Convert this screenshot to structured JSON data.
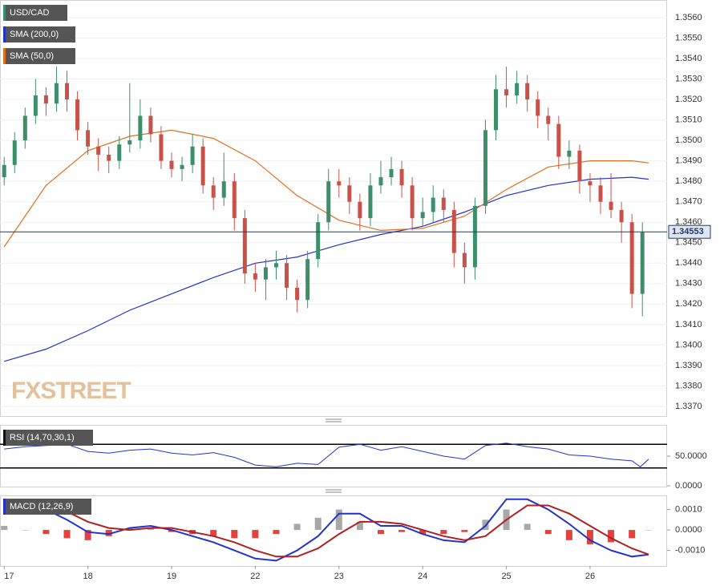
{
  "chart_data": [
    {
      "type": "candlestick",
      "title": "USD/CAD",
      "watermark": "FXSTREET",
      "up_color": "#3d8f6b",
      "down_color": "#c8524a",
      "xlim": [
        -0.05,
        7.92
      ],
      "xticks": [
        {
          "value": 0,
          "label": "17"
        },
        {
          "value": 1,
          "label": "18"
        },
        {
          "value": 2,
          "label": "19"
        },
        {
          "value": 3,
          "label": "22"
        },
        {
          "value": 4,
          "label": "23"
        },
        {
          "value": 5,
          "label": "24"
        },
        {
          "value": 6,
          "label": "25"
        },
        {
          "value": 7,
          "label": "26"
        }
      ],
      "ylim": [
        1.33649,
        1.35686
      ],
      "yticks": [
        {
          "value": 1.337,
          "label": "1.3370"
        },
        {
          "value": 1.338,
          "label": "1.3380"
        },
        {
          "value": 1.339,
          "label": "1.3390"
        },
        {
          "value": 1.34,
          "label": "1.3400"
        },
        {
          "value": 1.341,
          "label": "1.3410"
        },
        {
          "value": 1.342,
          "label": "1.3420"
        },
        {
          "value": 1.343,
          "label": "1.3430"
        },
        {
          "value": 1.344,
          "label": "1.3440"
        },
        {
          "value": 1.345,
          "label": "1.3450"
        },
        {
          "value": 1.346,
          "label": "1.3460"
        },
        {
          "value": 1.347,
          "label": "1.3470"
        },
        {
          "value": 1.348,
          "label": "1.3480"
        },
        {
          "value": 1.349,
          "label": "1.3490"
        },
        {
          "value": 1.35,
          "label": "1.3500"
        },
        {
          "value": 1.351,
          "label": "1.3510"
        },
        {
          "value": 1.352,
          "label": "1.3520"
        },
        {
          "value": 1.353,
          "label": "1.3530"
        },
        {
          "value": 1.354,
          "label": "1.3540"
        },
        {
          "value": 1.355,
          "label": "1.3550"
        },
        {
          "value": 1.356,
          "label": "1.3560"
        }
      ],
      "grid": true,
      "last_price": {
        "value": 1.34553,
        "label": "1.34553"
      },
      "x": [
        0,
        0.125,
        0.25,
        0.375,
        0.5,
        0.625,
        0.75,
        0.875,
        1,
        1.125,
        1.25,
        1.375,
        1.5,
        1.625,
        1.75,
        1.875,
        2,
        2.125,
        2.25,
        2.375,
        2.5,
        2.625,
        2.75,
        2.875,
        3,
        3.125,
        3.25,
        3.375,
        3.5,
        3.625,
        3.75,
        3.875,
        4,
        4.125,
        4.25,
        4.375,
        4.5,
        4.625,
        4.75,
        4.875,
        5,
        5.125,
        5.25,
        5.375,
        5.5,
        5.625,
        5.75,
        5.875,
        6,
        6.125,
        6.25,
        6.375,
        6.5,
        6.625,
        6.75,
        6.875,
        7,
        7.125,
        7.25,
        7.375,
        7.5,
        7.625
      ],
      "open": [
        1.3482,
        1.3488,
        1.35,
        1.3512,
        1.3522,
        1.3518,
        1.3528,
        1.352,
        1.3505,
        1.3497,
        1.3493,
        1.349,
        1.3498,
        1.35,
        1.3512,
        1.3503,
        1.349,
        1.3486,
        1.3488,
        1.3497,
        1.3478,
        1.3472,
        1.348,
        1.3462,
        1.3435,
        1.3432,
        1.3438,
        1.344,
        1.3428,
        1.3422,
        1.3442,
        1.346,
        1.348,
        1.3478,
        1.347,
        1.3462,
        1.3478,
        1.3482,
        1.3486,
        1.3478,
        1.3462,
        1.3465,
        1.3472,
        1.3466,
        1.3445,
        1.3438,
        1.3468,
        1.3505,
        1.3525,
        1.3522,
        1.3528,
        1.352,
        1.3512,
        1.3508,
        1.3492,
        1.3495,
        1.348,
        1.3478,
        1.347,
        1.3466,
        1.346,
        1.3425
      ],
      "high": [
        1.3492,
        1.3504,
        1.3516,
        1.353,
        1.3526,
        1.3536,
        1.3534,
        1.3524,
        1.3509,
        1.3501,
        1.3497,
        1.3502,
        1.3528,
        1.352,
        1.3516,
        1.3507,
        1.3494,
        1.3492,
        1.3503,
        1.3501,
        1.3482,
        1.3494,
        1.3484,
        1.3466,
        1.344,
        1.3442,
        1.3446,
        1.3444,
        1.3432,
        1.3446,
        1.3464,
        1.3486,
        1.3486,
        1.3482,
        1.3474,
        1.3484,
        1.349,
        1.3492,
        1.349,
        1.3482,
        1.3472,
        1.3478,
        1.3476,
        1.347,
        1.345,
        1.3472,
        1.351,
        1.3532,
        1.3536,
        1.3534,
        1.3532,
        1.3524,
        1.3516,
        1.3512,
        1.35,
        1.3498,
        1.3484,
        1.3482,
        1.3484,
        1.347,
        1.3464,
        1.346
      ],
      "low": [
        1.3478,
        1.3484,
        1.3496,
        1.3508,
        1.3512,
        1.3514,
        1.3514,
        1.35,
        1.3493,
        1.3485,
        1.3484,
        1.3486,
        1.3494,
        1.3496,
        1.3499,
        1.3486,
        1.3482,
        1.348,
        1.3484,
        1.3474,
        1.3466,
        1.3468,
        1.3456,
        1.343,
        1.3426,
        1.3422,
        1.3432,
        1.3422,
        1.3416,
        1.3418,
        1.3438,
        1.3456,
        1.3472,
        1.3464,
        1.3456,
        1.3458,
        1.3474,
        1.3478,
        1.3472,
        1.3456,
        1.3458,
        1.346,
        1.346,
        1.3438,
        1.343,
        1.3432,
        1.3464,
        1.35,
        1.3516,
        1.3518,
        1.3514,
        1.3506,
        1.35,
        1.3486,
        1.3486,
        1.3474,
        1.347,
        1.3464,
        1.3462,
        1.345,
        1.3418,
        1.3414
      ],
      "close": [
        1.3488,
        1.35,
        1.3512,
        1.3522,
        1.3518,
        1.3528,
        1.352,
        1.3505,
        1.3497,
        1.3493,
        1.349,
        1.3498,
        1.35,
        1.3512,
        1.3503,
        1.349,
        1.3486,
        1.3488,
        1.3497,
        1.3478,
        1.3472,
        1.348,
        1.3462,
        1.3435,
        1.3432,
        1.3438,
        1.344,
        1.3428,
        1.3422,
        1.3442,
        1.346,
        1.348,
        1.3478,
        1.347,
        1.3462,
        1.3478,
        1.3482,
        1.3486,
        1.3478,
        1.3462,
        1.3465,
        1.3472,
        1.3466,
        1.3445,
        1.3438,
        1.3468,
        1.3505,
        1.3525,
        1.3522,
        1.3528,
        1.352,
        1.3512,
        1.3508,
        1.3492,
        1.3495,
        1.348,
        1.3478,
        1.347,
        1.3466,
        1.346,
        1.3425,
        1.3455
      ],
      "series": [
        {
          "name": "SMA (200,0)",
          "color": "#2233cc",
          "x": [
            0,
            0.5,
            1,
            1.5,
            2,
            2.5,
            3,
            3.5,
            4,
            4.5,
            5,
            5.5,
            6,
            6.5,
            7,
            7.5,
            7.7
          ],
          "values": [
            1.3392,
            1.3398,
            1.3407,
            1.3417,
            1.3425,
            1.3433,
            1.344,
            1.3443,
            1.3449,
            1.3454,
            1.3458,
            1.3465,
            1.3473,
            1.3478,
            1.3481,
            1.3482,
            1.3481
          ]
        },
        {
          "name": "SMA (50,0)",
          "color": "#e07020",
          "x": [
            0,
            0.5,
            1,
            1.5,
            2,
            2.5,
            3,
            3.5,
            4,
            4.5,
            5,
            5.5,
            6,
            6.5,
            7,
            7.5,
            7.7
          ],
          "values": [
            1.3448,
            1.3478,
            1.3495,
            1.3502,
            1.3505,
            1.3501,
            1.349,
            1.3473,
            1.3461,
            1.3456,
            1.3457,
            1.3463,
            1.3476,
            1.3487,
            1.349,
            1.349,
            1.3489
          ]
        }
      ]
    },
    {
      "type": "line",
      "title": "RSI (14,70,30,1)",
      "color": "#2233cc",
      "levels": [
        70,
        30
      ],
      "ylim": [
        -2.7,
        102.7
      ],
      "yticks": [
        {
          "value": 0,
          "label": "0.0000"
        },
        {
          "value": 50,
          "label": "50.0000"
        }
      ],
      "x": [
        0,
        0.25,
        0.5,
        0.75,
        1,
        1.25,
        1.5,
        1.75,
        2,
        2.25,
        2.5,
        2.75,
        3,
        3.25,
        3.5,
        3.75,
        4,
        4.25,
        4.5,
        4.75,
        5,
        5.25,
        5.5,
        5.75,
        6,
        6.25,
        6.5,
        6.75,
        7,
        7.25,
        7.5,
        7.6,
        7.7
      ],
      "values": [
        62,
        66,
        68,
        70,
        58,
        55,
        60,
        62,
        55,
        52,
        56,
        48,
        35,
        32,
        38,
        36,
        65,
        70,
        60,
        66,
        58,
        50,
        45,
        68,
        72,
        66,
        62,
        52,
        50,
        45,
        42,
        32,
        45
      ]
    },
    {
      "type": "macd",
      "title": "MACD (12,26,9)",
      "ylim": [
        -0.00176,
        0.00169
      ],
      "yticks": [
        {
          "value": -0.001,
          "label": "-0.0010"
        },
        {
          "value": 0,
          "label": "0.0000"
        },
        {
          "value": 0.001,
          "label": "0.0010"
        }
      ],
      "x": [
        0,
        0.25,
        0.5,
        0.75,
        1,
        1.25,
        1.5,
        1.75,
        2,
        2.25,
        2.5,
        2.75,
        3,
        3.25,
        3.5,
        3.75,
        4,
        4.25,
        4.5,
        4.75,
        5,
        5.25,
        5.5,
        5.75,
        6,
        6.25,
        6.5,
        6.75,
        7,
        7.25,
        7.5,
        7.7
      ],
      "series": [
        {
          "color": "#2233cc",
          "values": [
            0.0014,
            0.0013,
            0.001,
            0.0005,
            -0.0001,
            -0.0002,
            0.0001,
            0.0002,
            0,
            -0.0003,
            -0.0006,
            -0.001,
            -0.0014,
            -0.0015,
            -0.001,
            -0.0003,
            0.0008,
            0.0008,
            0.0002,
            0.0002,
            -0.0002,
            -0.0005,
            -0.0006,
            0.0002,
            0.0015,
            0.0015,
            0.001,
            0.0003,
            -0.0005,
            -0.001,
            -0.0013,
            -0.0012
          ]
        },
        {
          "color": "#b02020",
          "values": [
            0.0012,
            0.0013,
            0.0012,
            0.0009,
            0.0004,
            0.0001,
            0,
            0.0001,
            0.0001,
            -0.0001,
            -0.0003,
            -0.0006,
            -0.001,
            -0.0013,
            -0.0013,
            -0.0009,
            -0.0002,
            0.0004,
            0.0004,
            0.0003,
            0,
            -0.0003,
            -0.0005,
            -0.0003,
            0.0005,
            0.0012,
            0.0012,
            0.0008,
            0.0002,
            -0.0004,
            -0.0009,
            -0.0012
          ]
        }
      ],
      "histogram": [
        0.0002,
        0,
        -0.0002,
        -0.0004,
        -0.0005,
        -0.0003,
        0.0001,
        0.0001,
        -0.0001,
        -0.0002,
        -0.0003,
        -0.0004,
        -0.0004,
        -0.0002,
        0.0003,
        0.0006,
        0.001,
        0.0004,
        -0.0002,
        -0.0001,
        -0.0002,
        -0.0002,
        -0.0001,
        0.0005,
        0.001,
        0.0003,
        -0.0002,
        -0.0005,
        -0.0007,
        -0.0006,
        -0.0004,
        0
      ],
      "hist_up_color": "#999999",
      "hist_down_color": "#e0201a"
    }
  ]
}
